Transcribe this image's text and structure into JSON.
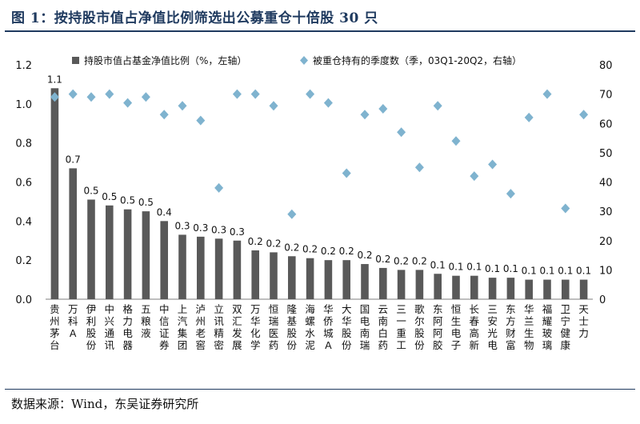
{
  "header": {
    "title": "图 1：按持股市值占净值比例筛选出公募重仓十倍股 30 只"
  },
  "footer": {
    "source": "数据来源：Wind，东吴证券研究所"
  },
  "chart_data": {
    "type": "bar",
    "categories": [
      "贵州茅台",
      "万科A",
      "伊利股份",
      "中兴通讯",
      "格力电器",
      "五粮液",
      "中信证券",
      "上汽集团",
      "泸州老窖",
      "立讯精密",
      "双汇发展",
      "万华化学",
      "恒瑞医药",
      "隆基股份",
      "海螺水泥",
      "华侨城A",
      "大华股份",
      "国电南瑞",
      "云南白药",
      "三一重工",
      "歌尔股份",
      "东阿阿胶",
      "恒生电子",
      "长春高新",
      "三安光电",
      "东方财富",
      "华兰生物",
      "福耀玻璃",
      "卫宁健康",
      "天士力"
    ],
    "series": [
      {
        "name": "持股市值占基金净值比例（%，左轴）",
        "type": "bar",
        "axis": "left",
        "color": "#595959",
        "values": [
          1.08,
          0.67,
          0.51,
          0.48,
          0.46,
          0.45,
          0.4,
          0.33,
          0.32,
          0.31,
          0.3,
          0.25,
          0.24,
          0.22,
          0.21,
          0.2,
          0.2,
          0.18,
          0.16,
          0.15,
          0.15,
          0.13,
          0.12,
          0.12,
          0.11,
          0.11,
          0.1,
          0.1,
          0.1,
          0.1
        ],
        "labels": [
          "1.1",
          "0.7",
          "0.5",
          "0.5",
          "0.5",
          "0.5",
          "0.4",
          "0.3",
          "0.3",
          "0.3",
          "0.3",
          "0.2",
          "0.2",
          "0.2",
          "0.2",
          "0.2",
          "0.2",
          "0.2",
          "0.2",
          "0.2",
          "0.2",
          "0.1",
          "0.1",
          "0.1",
          "0.1",
          "0.1",
          "0.1",
          "0.1",
          "0.1",
          "0.1"
        ]
      },
      {
        "name": "被重仓持有的季度数（季，03Q1-20Q2，右轴）",
        "type": "scatter",
        "axis": "right",
        "color": "#7fb3cf",
        "marker": "diamond",
        "values": [
          69,
          70,
          69,
          70,
          67,
          69,
          63,
          66,
          61,
          38,
          70,
          70,
          66,
          29,
          70,
          67,
          43,
          63,
          65,
          57,
          45,
          66,
          54,
          42,
          46,
          36,
          62,
          70,
          31,
          63
        ]
      }
    ],
    "yAxisLeft": {
      "min": 0,
      "max": 1.2,
      "ticks": [
        "0.0",
        "0.2",
        "0.4",
        "0.6",
        "0.8",
        "1.0",
        "1.2"
      ]
    },
    "yAxisRight": {
      "min": 0,
      "max": 80,
      "ticks": [
        "0",
        "10",
        "20",
        "30",
        "40",
        "50",
        "60",
        "70",
        "80"
      ]
    },
    "legend_position": "top",
    "grid": false
  }
}
